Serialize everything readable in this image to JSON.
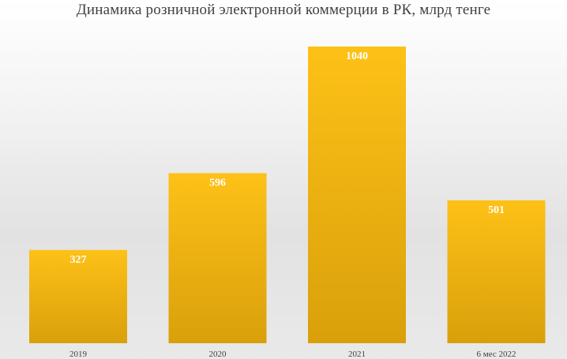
{
  "chart_data": {
    "type": "bar",
    "title": "Динамика розничной электронной коммерции в РК, млрд тенге",
    "categories": [
      "2019",
      "2020",
      "2021",
      "6 мес 2022"
    ],
    "values": [
      327,
      596,
      1040,
      501
    ],
    "xlabel": "",
    "ylabel": "",
    "ylim": [
      0,
      1060
    ],
    "grid": false,
    "legend": "none",
    "data_labels": [
      "327",
      "596",
      "1040",
      "501"
    ],
    "colors": {
      "bar_top": "#FDC117",
      "bar_bottom": "#D9A00B",
      "label": "#FFFFFF",
      "axis_text": "#404040"
    }
  }
}
